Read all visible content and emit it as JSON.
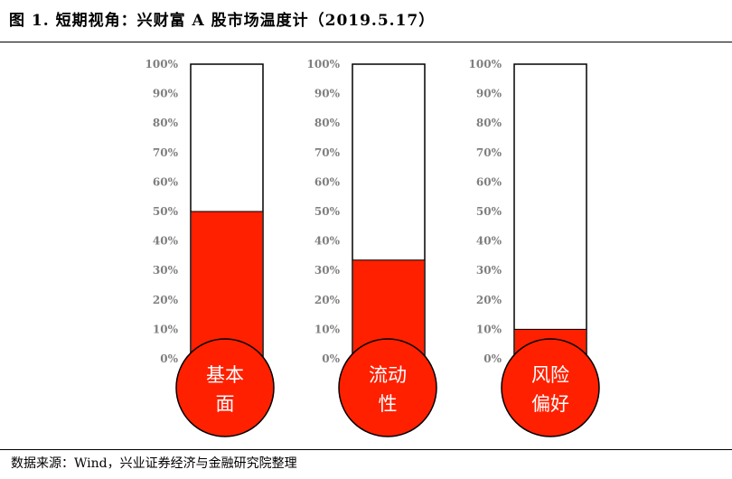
{
  "title": "图 1. 短期视角：兴财富 A 股市场温度计（2019.5.17）",
  "source": "数据来源：Wind，兴业证券经济与金融研究院整理",
  "colors": {
    "fill": "#FF2000",
    "bulb": "#FF2000",
    "outline": "#000000",
    "tick": "#7F7F7F"
  },
  "chart_data": [
    {
      "type": "bar",
      "categories": [
        "基本面"
      ],
      "label_lines": [
        "基本",
        "面"
      ],
      "values": [
        50
      ],
      "ylim": [
        0,
        100
      ],
      "ytick_labels": [
        "0%",
        "10%",
        "20%",
        "30%",
        "40%",
        "50%",
        "60%",
        "70%",
        "80%",
        "90%",
        "100%"
      ]
    },
    {
      "type": "bar",
      "categories": [
        "流动性"
      ],
      "label_lines": [
        "流动",
        "性"
      ],
      "values": [
        33.5
      ],
      "ylim": [
        0,
        100
      ],
      "ytick_labels": [
        "0%",
        "10%",
        "20%",
        "30%",
        "40%",
        "50%",
        "60%",
        "70%",
        "80%",
        "90%",
        "100%"
      ]
    },
    {
      "type": "bar",
      "categories": [
        "风险偏好"
      ],
      "label_lines": [
        "风险",
        "偏好"
      ],
      "values": [
        10
      ],
      "ylim": [
        0,
        100
      ],
      "ytick_labels": [
        "0%",
        "10%",
        "20%",
        "30%",
        "40%",
        "50%",
        "60%",
        "70%",
        "80%",
        "90%",
        "100%"
      ]
    }
  ]
}
